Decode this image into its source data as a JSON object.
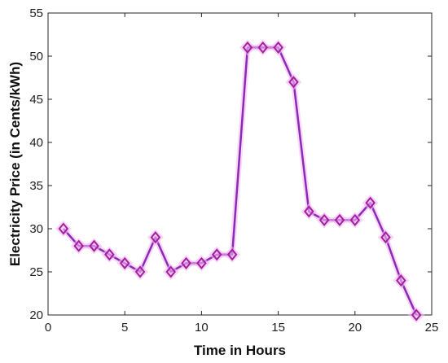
{
  "colors": {
    "line": "#8a2bb8",
    "marker_edge": "#a0219e",
    "marker_glow": "#f4b8f2",
    "axis": "#262626"
  },
  "chart_data": {
    "type": "line",
    "title": "",
    "xlabel": "Time in Hours",
    "ylabel": "Electricity Price (in Cents/kWh)",
    "xlim": [
      0,
      25
    ],
    "ylim": [
      20,
      55
    ],
    "xticks": [
      "0",
      "5",
      "10",
      "15",
      "20",
      "25"
    ],
    "yticks": [
      "20",
      "25",
      "30",
      "35",
      "40",
      "45",
      "50",
      "55"
    ],
    "grid": false,
    "marker": "diamond",
    "series": [
      {
        "x": [
          1,
          2,
          3,
          4,
          5,
          6,
          7,
          8,
          9,
          10,
          11,
          12,
          13,
          14,
          15,
          16,
          17,
          18,
          19,
          20,
          21,
          22,
          23,
          24
        ],
        "y": [
          30,
          28,
          28,
          27,
          26,
          25,
          29,
          25,
          26,
          26,
          27,
          27,
          51,
          51,
          51,
          47,
          32,
          31,
          31,
          31,
          33,
          29,
          24,
          20
        ]
      }
    ]
  }
}
